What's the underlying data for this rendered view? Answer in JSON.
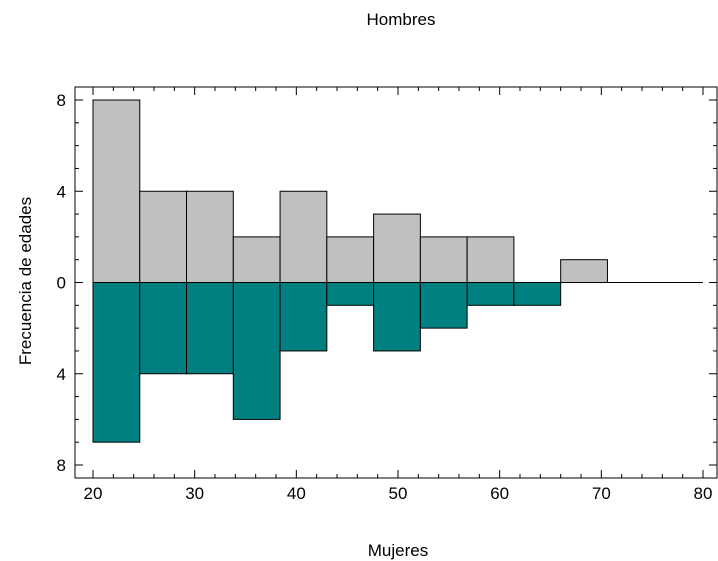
{
  "chart_data": {
    "type": "bar",
    "title": "Hombres",
    "xlabel": "Mujeres",
    "ylabel": "Frecuencia de edades",
    "bin_edges": [
      20,
      24.6,
      29.2,
      33.8,
      38.4,
      43,
      47.6,
      52.2,
      56.8,
      61.4,
      66,
      70.6
    ],
    "xlim": [
      20,
      80
    ],
    "ylim": [
      -8,
      8
    ],
    "x_ticks": [
      "20",
      "30",
      "40",
      "50",
      "60",
      "70",
      "80"
    ],
    "y_ticks": [
      "8",
      "4",
      "0",
      "4",
      "8"
    ],
    "series": [
      {
        "name": "Hombres",
        "direction": "up",
        "color": "#c0c0c0",
        "values": [
          8,
          4,
          4,
          2,
          4,
          2,
          3,
          2,
          2,
          0,
          1
        ]
      },
      {
        "name": "Mujeres",
        "direction": "down",
        "color": "#008080",
        "values": [
          7,
          4,
          4,
          6,
          3,
          1,
          3,
          2,
          1,
          1,
          0
        ]
      }
    ],
    "grid": false,
    "legend": "none"
  }
}
